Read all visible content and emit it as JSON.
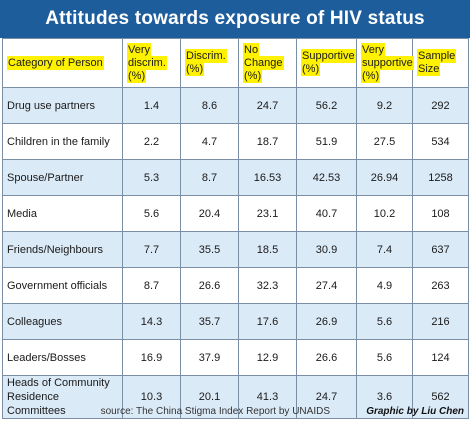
{
  "title": "Attitudes  towards  exposure of HIV status",
  "colors": {
    "title_bar": "#1e5d9c",
    "row_shade": "#dbeaf7",
    "highlight": "#fff200",
    "grid_line": "#7a8fa6"
  },
  "footer": {
    "source": "source: The China Stigma Index Report by UNAIDS",
    "credit": "Graphic by Liu Chen"
  },
  "chart_data": {
    "type": "table",
    "title": "Attitudes  towards  exposure of HIV status",
    "columns": [
      "Category of Person",
      "Very discrim. (%)",
      "Discrim. (%)",
      "No Change (%)",
      "Supportive (%)",
      "Very supportive (%)",
      "Sample Size"
    ],
    "rows": [
      {
        "category": "Drug use partners",
        "very_discrim": "1.4",
        "discrim": "8.6",
        "no_change": "24.7",
        "supportive": "56.2",
        "very_supportive": "9.2",
        "sample_size": "292"
      },
      {
        "category": "Children in the family",
        "very_discrim": "2.2",
        "discrim": "4.7",
        "no_change": "18.7",
        "supportive": "51.9",
        "very_supportive": "27.5",
        "sample_size": "534"
      },
      {
        "category": "Spouse/Partner",
        "very_discrim": "5.3",
        "discrim": "8.7",
        "no_change": "16.53",
        "supportive": "42.53",
        "very_supportive": "26.94",
        "sample_size": "1258"
      },
      {
        "category": "Media",
        "very_discrim": "5.6",
        "discrim": "20.4",
        "no_change": "23.1",
        "supportive": "40.7",
        "very_supportive": "10.2",
        "sample_size": "108"
      },
      {
        "category": "Friends/Neighbours",
        "very_discrim": "7.7",
        "discrim": "35.5",
        "no_change": "18.5",
        "supportive": "30.9",
        "very_supportive": "7.4",
        "sample_size": "637"
      },
      {
        "category": "Government officials",
        "very_discrim": "8.7",
        "discrim": "26.6",
        "no_change": "32.3",
        "supportive": "27.4",
        "very_supportive": "4.9",
        "sample_size": "263"
      },
      {
        "category": "Colleagues",
        "very_discrim": "14.3",
        "discrim": "35.7",
        "no_change": "17.6",
        "supportive": "26.9",
        "very_supportive": "5.6",
        "sample_size": "216"
      },
      {
        "category": "Leaders/Bosses",
        "very_discrim": "16.9",
        "discrim": "37.9",
        "no_change": "12.9",
        "supportive": "26.6",
        "very_supportive": "5.6",
        "sample_size": "124"
      },
      {
        "category": "Heads of Community Residence Committees",
        "very_discrim": "10.3",
        "discrim": "20.1",
        "no_change": "41.3",
        "supportive": "24.7",
        "very_supportive": "3.6",
        "sample_size": "562"
      }
    ]
  }
}
